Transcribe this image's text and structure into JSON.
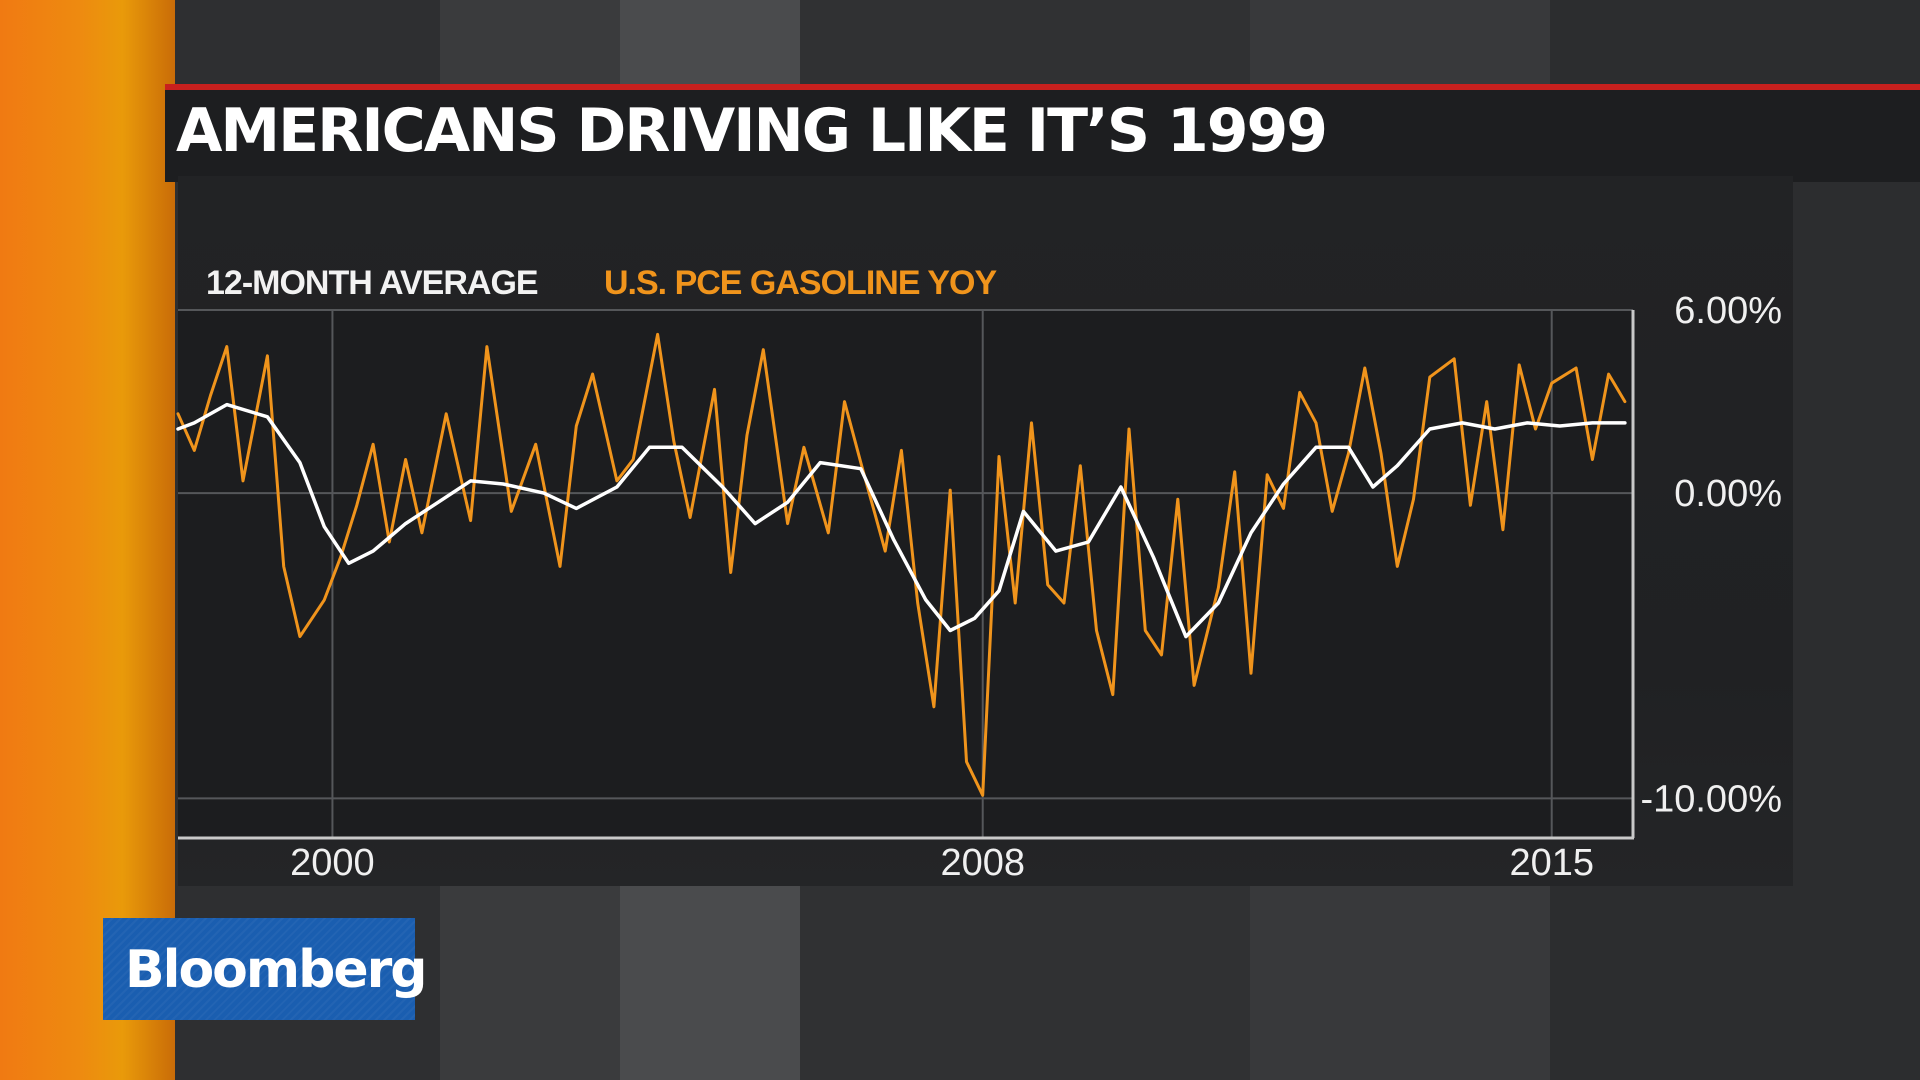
{
  "title": "AMERICANS DRIVING LIKE IT’S 1999",
  "logo": "Bloomberg",
  "colors": {
    "series_gasoline": "#f0941c",
    "series_average": "#ffffff",
    "title_rule": "#c8201e",
    "logo_bg": "#1a5eb0"
  },
  "chart_data": {
    "type": "line",
    "title": "AMERICANS DRIVING LIKE IT’S 1999",
    "xlabel": "",
    "ylabel": "",
    "xlim": [
      1998.1,
      2016.0
    ],
    "ylim": [
      -11.3,
      6.0
    ],
    "x_ticks": [
      {
        "value": 2000,
        "label": "2000"
      },
      {
        "value": 2008,
        "label": "2008"
      },
      {
        "value": 2015,
        "label": "2015"
      }
    ],
    "y_ticks": [
      {
        "value": 6.0,
        "label": "6.00%"
      },
      {
        "value": 0.0,
        "label": "0.00%"
      },
      {
        "value": -10.0,
        "label": "-10.00%"
      }
    ],
    "grid": true,
    "legend_position": "top-left",
    "series": [
      {
        "name": "12-MONTH AVERAGE",
        "color": "#ffffff",
        "x": [
          1998.1,
          1998.3,
          1998.7,
          1999.2,
          1999.6,
          1999.9,
          2000.2,
          2000.5,
          2000.9,
          2001.3,
          2001.7,
          2002.1,
          2002.6,
          2003.0,
          2003.5,
          2003.9,
          2004.3,
          2004.8,
          2005.2,
          2005.6,
          2006.0,
          2006.5,
          2006.9,
          2007.3,
          2007.6,
          2007.9,
          2008.2,
          2008.5,
          2008.9,
          2009.3,
          2009.7,
          2010.1,
          2010.5,
          2010.9,
          2011.3,
          2011.7,
          2012.1,
          2012.5,
          2012.8,
          2013.1,
          2013.5,
          2013.9,
          2014.3,
          2014.7,
          2015.1,
          2015.5,
          2015.9
        ],
        "y": [
          2.1,
          2.3,
          2.9,
          2.5,
          1.0,
          -1.1,
          -2.3,
          -1.9,
          -1.0,
          -0.3,
          0.4,
          0.3,
          0.0,
          -0.5,
          0.2,
          1.5,
          1.5,
          0.2,
          -1.0,
          -0.3,
          1.0,
          0.8,
          -1.5,
          -3.5,
          -4.5,
          -4.1,
          -3.2,
          -0.6,
          -1.9,
          -1.6,
          0.2,
          -2.1,
          -4.7,
          -3.6,
          -1.3,
          0.3,
          1.5,
          1.5,
          0.2,
          0.9,
          2.1,
          2.3,
          2.1,
          2.3,
          2.2,
          2.3,
          2.3
        ]
      },
      {
        "name": "U.S. PCE GASOLINE YOY",
        "color": "#f0941c",
        "x": [
          1998.1,
          1998.3,
          1998.5,
          1998.7,
          1998.9,
          1999.2,
          1999.4,
          1999.6,
          1999.9,
          2000.1,
          2000.3,
          2000.5,
          2000.7,
          2000.9,
          2001.1,
          2001.4,
          2001.7,
          2001.9,
          2002.2,
          2002.5,
          2002.8,
          2003.0,
          2003.2,
          2003.5,
          2003.7,
          2004.0,
          2004.2,
          2004.4,
          2004.7,
          2004.9,
          2005.1,
          2005.3,
          2005.6,
          2005.8,
          2006.1,
          2006.3,
          2006.5,
          2006.8,
          2007.0,
          2007.2,
          2007.4,
          2007.6,
          2007.8,
          2008.0,
          2008.2,
          2008.4,
          2008.6,
          2008.8,
          2009.0,
          2009.2,
          2009.4,
          2009.6,
          2009.8,
          2010.0,
          2010.2,
          2010.4,
          2010.6,
          2010.9,
          2011.1,
          2011.3,
          2011.5,
          2011.7,
          2011.9,
          2012.1,
          2012.3,
          2012.5,
          2012.7,
          2012.9,
          2013.1,
          2013.3,
          2013.5,
          2013.8,
          2014.0,
          2014.2,
          2014.4,
          2014.6,
          2014.8,
          2015.0,
          2015.3,
          2015.5,
          2015.7,
          2015.9
        ],
        "y": [
          2.6,
          1.4,
          3.2,
          4.8,
          0.4,
          4.5,
          -2.4,
          -4.7,
          -3.5,
          -2.1,
          -0.4,
          1.6,
          -1.6,
          1.1,
          -1.3,
          2.6,
          -0.9,
          4.8,
          -0.6,
          1.6,
          -2.4,
          2.2,
          3.9,
          0.4,
          1.1,
          5.2,
          1.7,
          -0.8,
          3.4,
          -2.6,
          1.9,
          4.7,
          -1.0,
          1.5,
          -1.3,
          3.0,
          1.0,
          -1.9,
          1.4,
          -3.6,
          -7.0,
          0.1,
          -8.8,
          -9.9,
          1.2,
          -3.6,
          2.3,
          -3.0,
          -3.6,
          0.9,
          -4.5,
          -6.6,
          2.1,
          -4.5,
          -5.3,
          -0.2,
          -6.3,
          -3.1,
          0.7,
          -5.9,
          0.6,
          -0.5,
          3.3,
          2.3,
          -0.6,
          1.3,
          4.1,
          1.3,
          -2.4,
          -0.2,
          3.8,
          4.4,
          -0.4,
          3.0,
          -1.2,
          4.2,
          2.1,
          3.6,
          4.1,
          1.1,
          3.9,
          3.0
        ]
      }
    ]
  }
}
